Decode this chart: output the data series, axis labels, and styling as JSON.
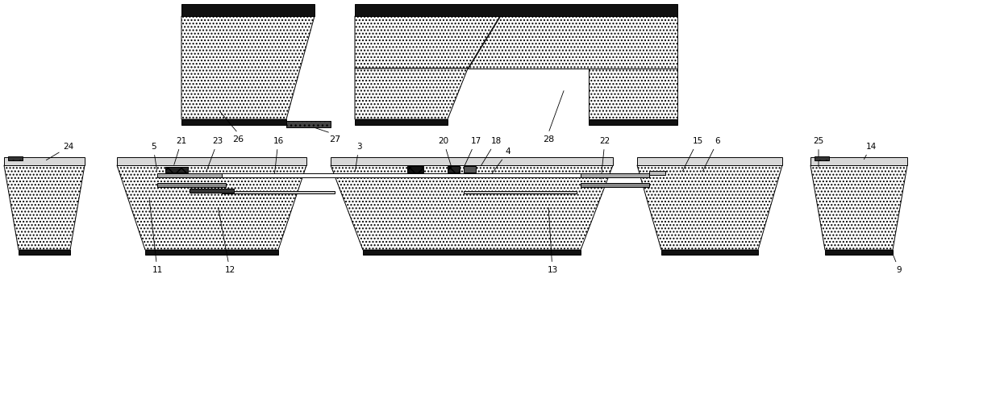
{
  "bg_color": "#ffffff",
  "fig_width": 12.4,
  "fig_height": 4.9,
  "dpi": 100,
  "lw": 0.7
}
